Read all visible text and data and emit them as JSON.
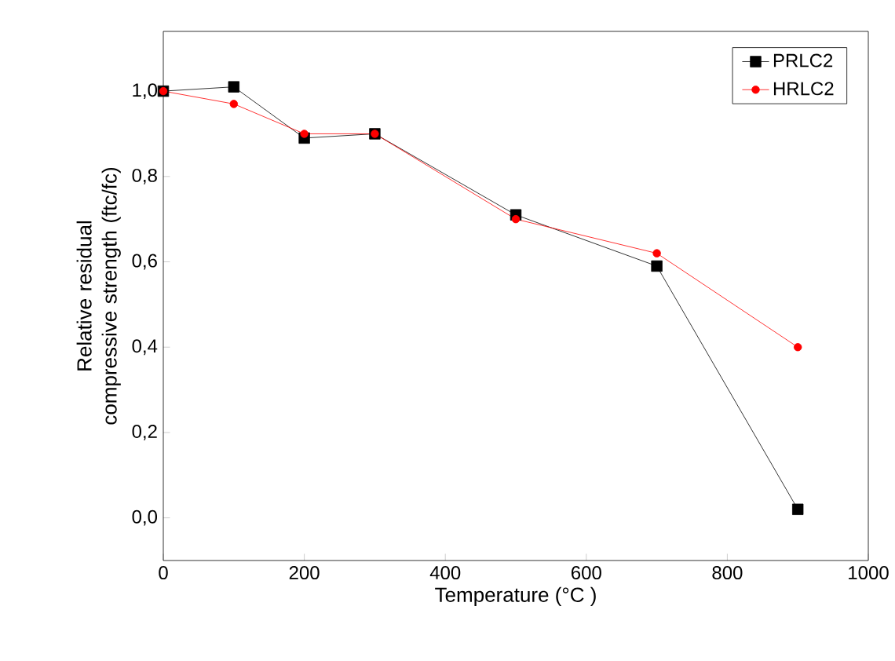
{
  "chart_data": {
    "type": "line",
    "xlabel": "Temperature (°C )",
    "ylabel": "Relative residual compressive strength (ftc/fc)",
    "x": [
      0,
      100,
      200,
      300,
      500,
      700,
      900
    ],
    "series": [
      {
        "name": "PRLC2",
        "color": "#000000",
        "marker": "square",
        "values": [
          1.0,
          1.01,
          0.89,
          0.9,
          0.71,
          0.59,
          0.02
        ]
      },
      {
        "name": "HRLC2",
        "color": "#ff0000",
        "marker": "circle",
        "values": [
          1.0,
          0.97,
          0.9,
          0.9,
          0.7,
          0.62,
          0.4
        ]
      }
    ],
    "xlim": [
      0,
      1000
    ],
    "ylim": [
      -0.1,
      1.14
    ],
    "xticks": [
      0,
      200,
      400,
      600,
      800,
      1000
    ],
    "yticks": [
      {
        "value": 0,
        "label": "0,0"
      },
      {
        "value": 0.2,
        "label": "0,2"
      },
      {
        "value": 0.4,
        "label": "0,4"
      },
      {
        "value": 0.6,
        "label": "0,6"
      },
      {
        "value": 0.8,
        "label": "0,8"
      },
      {
        "value": 1.0,
        "label": "1,0"
      }
    ],
    "legend": "top right",
    "line_style": "solid"
  }
}
